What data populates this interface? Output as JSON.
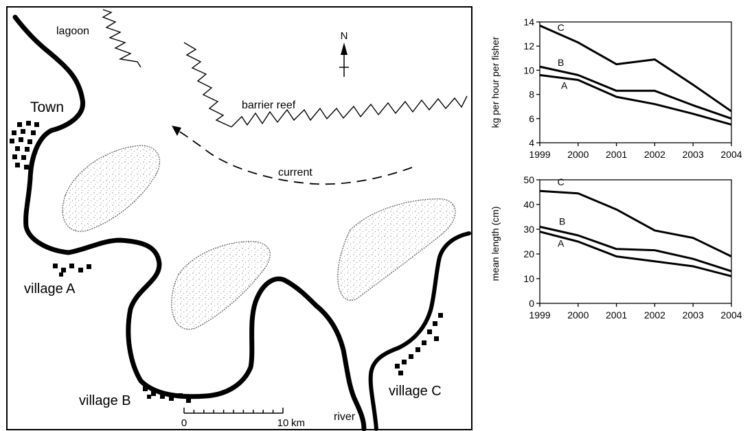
{
  "map": {
    "labels": {
      "lagoon": "lagoon",
      "town": "Town",
      "barrier_reef": "barrier reef",
      "current": "current",
      "village_a": "village A",
      "village_b": "village B",
      "village_c": "village C",
      "river": "river",
      "north": "N"
    },
    "scale": {
      "start": "0",
      "end": "10",
      "unit": "km"
    },
    "icons": [
      "north-arrow-icon",
      "settlement-house-icon",
      "island-icon"
    ]
  },
  "chart_data": [
    {
      "type": "line",
      "title": "",
      "xlabel": "",
      "ylabel": "kg per hour per fisher",
      "xlim": [
        1999,
        2004
      ],
      "ylim": [
        4,
        14
      ],
      "x_ticks": [
        "1999",
        "2000",
        "2001",
        "2002",
        "2003",
        "2004"
      ],
      "y_ticks": [
        "4",
        "6",
        "8",
        "10",
        "12",
        "14"
      ],
      "grid": false,
      "series": [
        {
          "name": "A",
          "x": [
            1999,
            2000,
            2001,
            2002,
            2003,
            2004
          ],
          "y": [
            9.6,
            9.2,
            7.8,
            7.2,
            6.4,
            5.5
          ]
        },
        {
          "name": "B",
          "x": [
            1999,
            2000,
            2001,
            2002,
            2003,
            2004
          ],
          "y": [
            10.3,
            9.6,
            8.3,
            8.3,
            7.1,
            6.0
          ]
        },
        {
          "name": "C",
          "x": [
            1999,
            2000,
            2001,
            2002,
            2003,
            2004
          ],
          "y": [
            13.7,
            12.3,
            10.5,
            10.9,
            8.8,
            6.6
          ]
        }
      ]
    },
    {
      "type": "line",
      "title": "",
      "xlabel": "",
      "ylabel": "mean length (cm)",
      "xlim": [
        1999,
        2004
      ],
      "ylim": [
        0,
        50
      ],
      "x_ticks": [
        "1999",
        "2000",
        "2001",
        "2002",
        "2003",
        "2004"
      ],
      "y_ticks": [
        "0",
        "10",
        "20",
        "30",
        "40",
        "50"
      ],
      "grid": false,
      "series": [
        {
          "name": "A",
          "x": [
            1999,
            2000,
            2001,
            2002,
            2003,
            2004
          ],
          "y": [
            29,
            25,
            19,
            17,
            15,
            11
          ]
        },
        {
          "name": "B",
          "x": [
            1999,
            2000,
            2001,
            2002,
            2003,
            2004
          ],
          "y": [
            31,
            27.5,
            22,
            21.5,
            18,
            13
          ]
        },
        {
          "name": "C",
          "x": [
            1999,
            2000,
            2001,
            2002,
            2003,
            2004
          ],
          "y": [
            45.5,
            44.5,
            38,
            29.5,
            26.5,
            19
          ]
        }
      ]
    }
  ]
}
